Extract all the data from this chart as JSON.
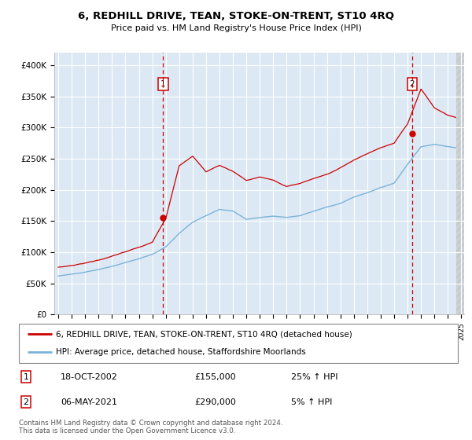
{
  "title": "6, REDHILL DRIVE, TEAN, STOKE-ON-TRENT, ST10 4RQ",
  "subtitle": "Price paid vs. HM Land Registry's House Price Index (HPI)",
  "ylim": [
    0,
    420000
  ],
  "yticks": [
    0,
    50000,
    100000,
    150000,
    200000,
    250000,
    300000,
    350000,
    400000
  ],
  "ytick_labels": [
    "£0",
    "£50K",
    "£100K",
    "£150K",
    "£200K",
    "£250K",
    "£300K",
    "£350K",
    "£400K"
  ],
  "bg_color": "#dce9f5",
  "hpi_color": "#7ab3d8",
  "price_color": "#cc0000",
  "annotation1_date": "18-OCT-2002",
  "annotation1_price": "£155,000",
  "annotation1_pct": "25% ↑ HPI",
  "annotation2_date": "06-MAY-2021",
  "annotation2_price": "£290,000",
  "annotation2_pct": "5% ↑ HPI",
  "legend_line1": "6, REDHILL DRIVE, TEAN, STOKE-ON-TRENT, ST10 4RQ (detached house)",
  "legend_line2": "HPI: Average price, detached house, Staffordshire Moorlands",
  "footer": "Contains HM Land Registry data © Crown copyright and database right 2024.\nThis data is licensed under the Open Government Licence v3.0.",
  "sale1_x": 2002.8,
  "sale1_y": 155000,
  "sale2_x": 2021.35,
  "sale2_y": 290000,
  "xmin": 1995,
  "xmax": 2025
}
